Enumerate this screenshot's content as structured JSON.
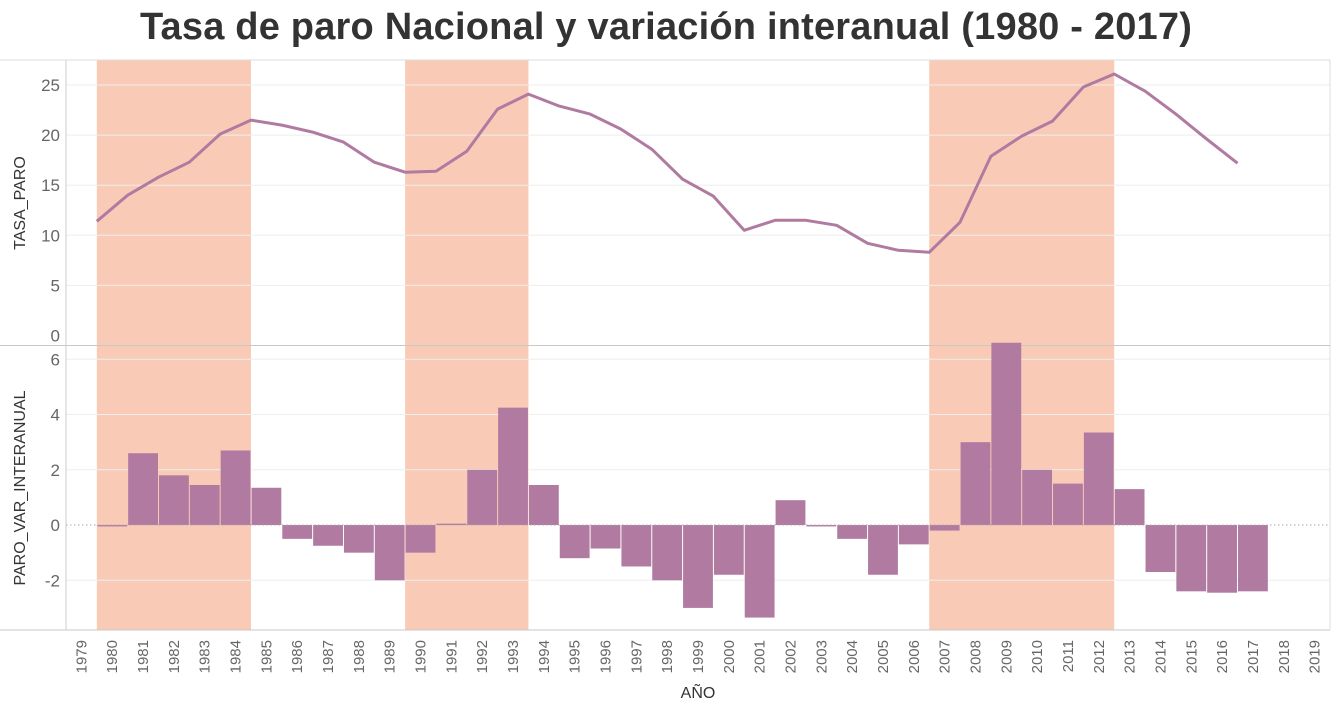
{
  "title": "Tasa de paro Nacional y variación interanual (1980 - 2017)",
  "colors": {
    "line": "#b07aa1",
    "bar": "#b07aa1",
    "band": "#f9cbb7",
    "grid": "#eeeeee"
  },
  "chart_data": [
    {
      "type": "line",
      "ylabel": "TASA_PARO",
      "xlabel": "",
      "ylim": [
        -1,
        27.5
      ],
      "yticks": [
        0,
        5,
        10,
        15,
        20,
        25
      ],
      "grid": true,
      "series": [
        {
          "x": [
            1980,
            1981,
            1982,
            1983,
            1984,
            1985,
            1986,
            1987,
            1988,
            1989,
            1990,
            1991,
            1992,
            1993,
            1994,
            1995,
            1996,
            1997,
            1998,
            1999,
            2000,
            2001,
            2002,
            2003,
            2004,
            2005,
            2006,
            2007,
            2008,
            2009,
            2010,
            2011,
            2012,
            2013,
            2014,
            2015,
            2016,
            2017
          ],
          "values": [
            11.4,
            14.0,
            15.8,
            17.3,
            20.1,
            21.5,
            21.0,
            20.3,
            19.3,
            17.3,
            16.3,
            16.4,
            18.4,
            22.6,
            24.1,
            22.9,
            22.1,
            20.6,
            18.6,
            15.6,
            13.9,
            10.5,
            11.5,
            11.5,
            11.0,
            9.2,
            8.5,
            8.3,
            11.3,
            17.9,
            19.9,
            21.4,
            24.8,
            26.1,
            24.4,
            22.1,
            19.6,
            17.2
          ]
        }
      ],
      "shaded_periods": [
        [
          1980,
          1985
        ],
        [
          1990,
          1994
        ],
        [
          2007,
          2013
        ]
      ]
    },
    {
      "type": "bar",
      "ylabel": "PARO_VAR_INTERANUAL",
      "xlabel": "AÑO",
      "ylim": [
        -3.8,
        6.5
      ],
      "yticks": [
        -2,
        0,
        2,
        4,
        6
      ],
      "grid": true,
      "categories": [
        "1979",
        "1980",
        "1981",
        "1982",
        "1983",
        "1984",
        "1985",
        "1986",
        "1987",
        "1988",
        "1989",
        "1990",
        "1991",
        "1992",
        "1993",
        "1994",
        "1995",
        "1996",
        "1997",
        "1998",
        "1999",
        "2000",
        "2001",
        "2002",
        "2003",
        "2004",
        "2005",
        "2006",
        "2007",
        "2008",
        "2009",
        "2010",
        "2011",
        "2012",
        "2013",
        "2014",
        "2015",
        "2016",
        "2017",
        "2018",
        "2019"
      ],
      "series": [
        {
          "x": [
            1980,
            1981,
            1982,
            1983,
            1984,
            1985,
            1986,
            1987,
            1988,
            1989,
            1990,
            1991,
            1992,
            1993,
            1994,
            1995,
            1996,
            1997,
            1998,
            1999,
            2000,
            2001,
            2002,
            2003,
            2004,
            2005,
            2006,
            2007,
            2008,
            2009,
            2010,
            2011,
            2012,
            2013,
            2014,
            2015,
            2016,
            2017
          ],
          "values": [
            -0.05,
            2.6,
            1.8,
            1.45,
            2.7,
            1.35,
            -0.5,
            -0.75,
            -1.0,
            -2.0,
            -1.0,
            0.05,
            2.0,
            4.25,
            1.45,
            -1.2,
            -0.85,
            -1.5,
            -2.0,
            -3.0,
            -1.8,
            -3.35,
            0.9,
            -0.05,
            -0.5,
            -1.8,
            -0.7,
            -0.2,
            3.0,
            6.6,
            2.0,
            1.5,
            3.35,
            1.3,
            -1.7,
            -2.4,
            -2.45,
            -2.4
          ]
        }
      ],
      "shaded_periods": [
        [
          1980,
          1985
        ],
        [
          1990,
          1994
        ],
        [
          2007,
          2013
        ]
      ]
    }
  ]
}
